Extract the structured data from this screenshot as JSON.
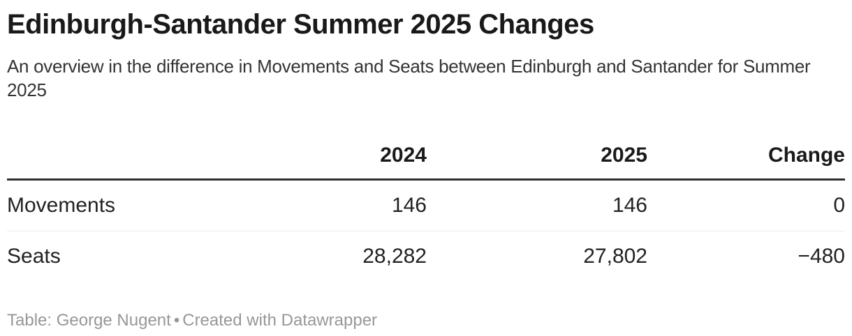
{
  "header": {
    "title": "Edinburgh-Santander Summer 2025 Changes",
    "subtitle": "An overview in the difference in Movements and Seats between Edinburgh and Santander for Summer 2025"
  },
  "table": {
    "columns": [
      "",
      "2024",
      "2025",
      "Change"
    ],
    "rows": [
      {
        "label": "Movements",
        "values": [
          "146",
          "146",
          "0"
        ]
      },
      {
        "label": "Seats",
        "values": [
          "28,282",
          "27,802",
          "−480"
        ]
      }
    ]
  },
  "footer": {
    "attribution": "Table: George Nugent",
    "separator": "•",
    "credit": "Created with Datawrapper"
  },
  "colors": {
    "title_text": "#191919",
    "body_text": "#222222",
    "subtitle_text": "#333333",
    "header_rule": "#2e2e2e",
    "row_divider": "#e8e8e8",
    "footer_text": "#979797",
    "background": "#ffffff"
  },
  "chart_data": {
    "type": "table",
    "title": "Edinburgh-Santander Summer 2025 Changes",
    "subtitle": "An overview in the difference in Movements and Seats between Edinburgh and Santander for Summer 2025",
    "columns": [
      "",
      "2024",
      "2025",
      "Change"
    ],
    "rows": [
      [
        "Movements",
        146,
        146,
        0
      ],
      [
        "Seats",
        28282,
        27802,
        -480
      ]
    ],
    "notes": "Table: George Nugent • Created with Datawrapper",
    "layout_hints": {
      "numeric_columns_right_aligned": true,
      "header_bold": true,
      "thick_rule_under_header": true,
      "light_divider_between_rows": true
    }
  }
}
